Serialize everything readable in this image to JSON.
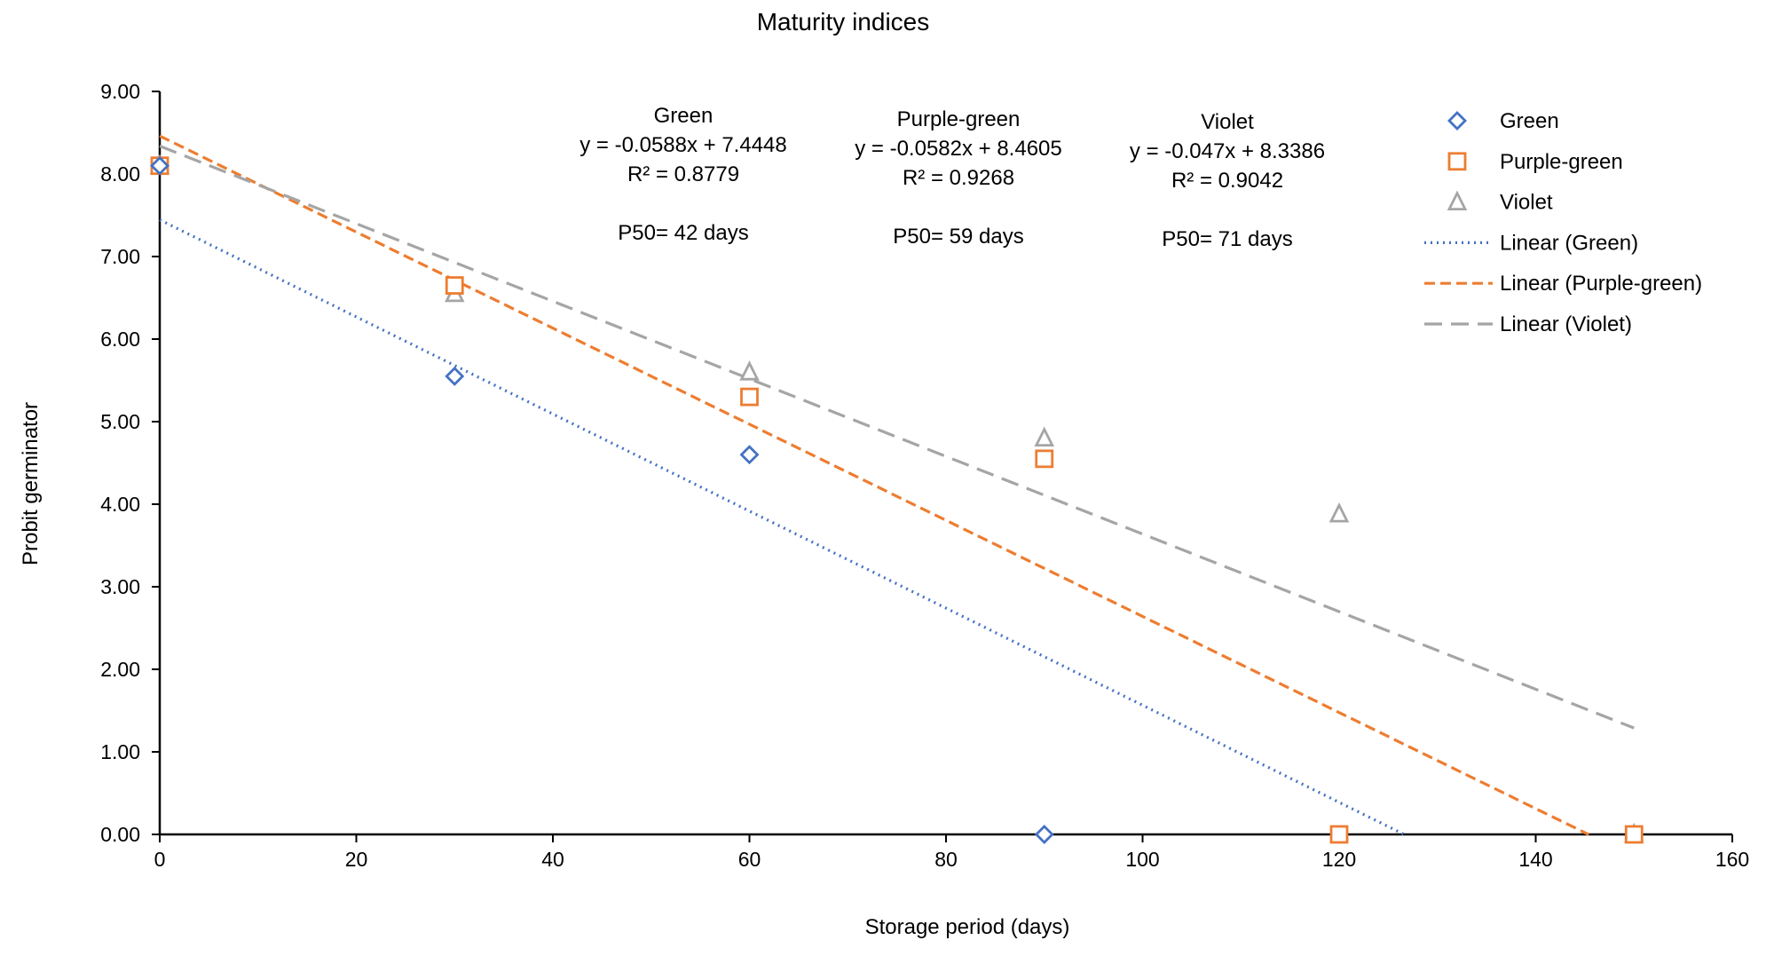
{
  "chart_data": {
    "type": "scatter",
    "title": "Maturity indices",
    "xlabel": "Storage period (days)",
    "ylabel": "Probit germinator",
    "xlim": [
      0,
      160
    ],
    "ylim": [
      0,
      9
    ],
    "xticks": [
      0,
      20,
      40,
      60,
      80,
      100,
      120,
      140,
      160
    ],
    "xtick_labels": [
      "0",
      "20",
      "40",
      "60",
      "80",
      "100",
      "120",
      "140",
      "160"
    ],
    "yticks": [
      0,
      1,
      2,
      3,
      4,
      5,
      6,
      7,
      8,
      9
    ],
    "ytick_labels": [
      "0.00",
      "1.00",
      "2.00",
      "3.00",
      "4.00",
      "5.00",
      "6.00",
      "7.00",
      "8.00",
      "9.00"
    ],
    "grid": false,
    "legend_position": "top-right",
    "series": [
      {
        "name": "Green",
        "marker": "diamond",
        "color": "#4472C4",
        "x": [
          0,
          30,
          60,
          90
        ],
        "y": [
          8.1,
          5.55,
          4.6,
          0.0
        ]
      },
      {
        "name": "Purple-green",
        "marker": "square",
        "color": "#ED7D31",
        "x": [
          0,
          30,
          60,
          90,
          120,
          150
        ],
        "y": [
          8.1,
          6.65,
          5.3,
          4.55,
          0.0,
          0.0
        ]
      },
      {
        "name": "Violet",
        "marker": "triangle",
        "color": "#A5A5A5",
        "x": [
          0,
          30,
          60,
          90,
          120,
          150
        ],
        "y": [
          8.1,
          6.55,
          5.6,
          4.8,
          3.88,
          0.0
        ]
      }
    ],
    "trendlines": [
      {
        "name": "Linear (Green)",
        "style": "dotted",
        "color": "#4472C4",
        "slope": -0.0588,
        "intercept": 7.4448,
        "x_range": [
          0,
          126.6
        ]
      },
      {
        "name": "Linear (Purple-green)",
        "style": "dashed",
        "color": "#ED7D31",
        "slope": -0.0582,
        "intercept": 8.4605,
        "x_range": [
          0,
          145.4
        ]
      },
      {
        "name": "Linear (Violet)",
        "style": "long-dashed",
        "color": "#A5A5A5",
        "slope": -0.047,
        "intercept": 8.3386,
        "x_range": [
          0,
          150
        ]
      }
    ],
    "annotations": [
      {
        "lines": [
          "Green",
          "y = -0.0588x + 7.4448",
          "R² = 0.8779",
          "",
          "P50= 42 days"
        ]
      },
      {
        "lines": [
          "Purple-green",
          "y = -0.0582x + 8.4605",
          "R² = 0.9268",
          "",
          "P50= 59 days"
        ]
      },
      {
        "lines": [
          "Violet",
          "y = -0.047x + 8.3386",
          "R² = 0.9042",
          "",
          "P50= 71 days"
        ]
      }
    ],
    "legend": [
      {
        "label": "Green",
        "kind": "marker",
        "marker": "diamond",
        "color": "#4472C4"
      },
      {
        "label": "Purple-green",
        "kind": "marker",
        "marker": "square",
        "color": "#ED7D31"
      },
      {
        "label": "Violet",
        "kind": "marker",
        "marker": "triangle",
        "color": "#A5A5A5"
      },
      {
        "label": "Linear (Green)",
        "kind": "line",
        "style": "dotted",
        "color": "#4472C4"
      },
      {
        "label": "Linear (Purple-green)",
        "kind": "line",
        "style": "dashed",
        "color": "#ED7D31"
      },
      {
        "label": "Linear (Violet)",
        "kind": "line",
        "style": "long-dashed",
        "color": "#A5A5A5"
      }
    ]
  }
}
